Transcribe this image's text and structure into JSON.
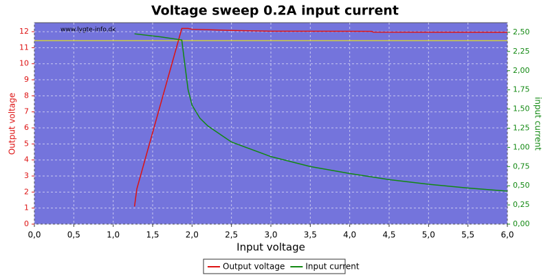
{
  "chart_data": {
    "type": "line",
    "title": "Voltage sweep 0.2A input current",
    "watermark": "www.lygte-info.dk",
    "x_label": "Input voltage",
    "y_label": "Output voltage",
    "y2_label": "input current",
    "xlim": [
      0,
      6
    ],
    "xticks": [
      {
        "value": 0,
        "label": "0,0"
      },
      {
        "value": 0.5,
        "label": "0,5"
      },
      {
        "value": 1,
        "label": "1,0"
      },
      {
        "value": 1.5,
        "label": "1,5"
      },
      {
        "value": 2,
        "label": "2,0"
      },
      {
        "value": 2.5,
        "label": "2,5"
      },
      {
        "value": 3,
        "label": "3,0"
      },
      {
        "value": 3.5,
        "label": "3,5"
      },
      {
        "value": 4,
        "label": "4,0"
      },
      {
        "value": 4.5,
        "label": "4,5"
      },
      {
        "value": 5,
        "label": "5,0"
      },
      {
        "value": 5.5,
        "label": "5,5"
      },
      {
        "value": 6,
        "label": "6,0"
      }
    ],
    "ylim": [
      0,
      12.56
    ],
    "yticks": [
      0,
      1,
      2,
      3,
      4,
      5,
      6,
      7,
      8,
      9,
      10,
      11,
      12
    ],
    "y2lim": [
      0,
      2.625
    ],
    "y2ticks": [
      {
        "value": 0,
        "label": "0,00"
      },
      {
        "value": 0.25,
        "label": "0,25"
      },
      {
        "value": 0.5,
        "label": "0,50"
      },
      {
        "value": 0.75,
        "label": "0,75"
      },
      {
        "value": 1,
        "label": "1,00"
      },
      {
        "value": 1.25,
        "label": "1,25"
      },
      {
        "value": 1.5,
        "label": "1,50"
      },
      {
        "value": 1.75,
        "label": "1,75"
      },
      {
        "value": 2,
        "label": "2,00"
      },
      {
        "value": 2.25,
        "label": "2,25"
      },
      {
        "value": 2.5,
        "label": "2,50"
      }
    ],
    "grid": true,
    "reference_line": {
      "value": 11.44,
      "color": "#e0e020"
    },
    "series": [
      {
        "name": "Output voltage",
        "color": "#dd1111",
        "x": [
          1.27,
          1.3,
          1.87,
          1.95,
          2.0,
          2.5,
          3.0,
          4.28,
          4.3,
          6.0
        ],
        "values": [
          1.1,
          2.2,
          12.2,
          12.2,
          12.15,
          12.08,
          12.03,
          12.02,
          11.97,
          11.96
        ]
      },
      {
        "name": "Input current",
        "color": "#118811",
        "axis": "y2",
        "x": [
          1.27,
          1.6,
          1.87,
          1.9,
          1.95,
          2.0,
          2.1,
          2.2,
          2.5,
          3.0,
          3.5,
          4.0,
          4.5,
          5.0,
          5.5,
          6.0
        ],
        "values": [
          2.48,
          2.44,
          2.4,
          2.15,
          1.75,
          1.55,
          1.38,
          1.28,
          1.07,
          0.88,
          0.75,
          0.66,
          0.58,
          0.52,
          0.47,
          0.43
        ]
      }
    ]
  }
}
